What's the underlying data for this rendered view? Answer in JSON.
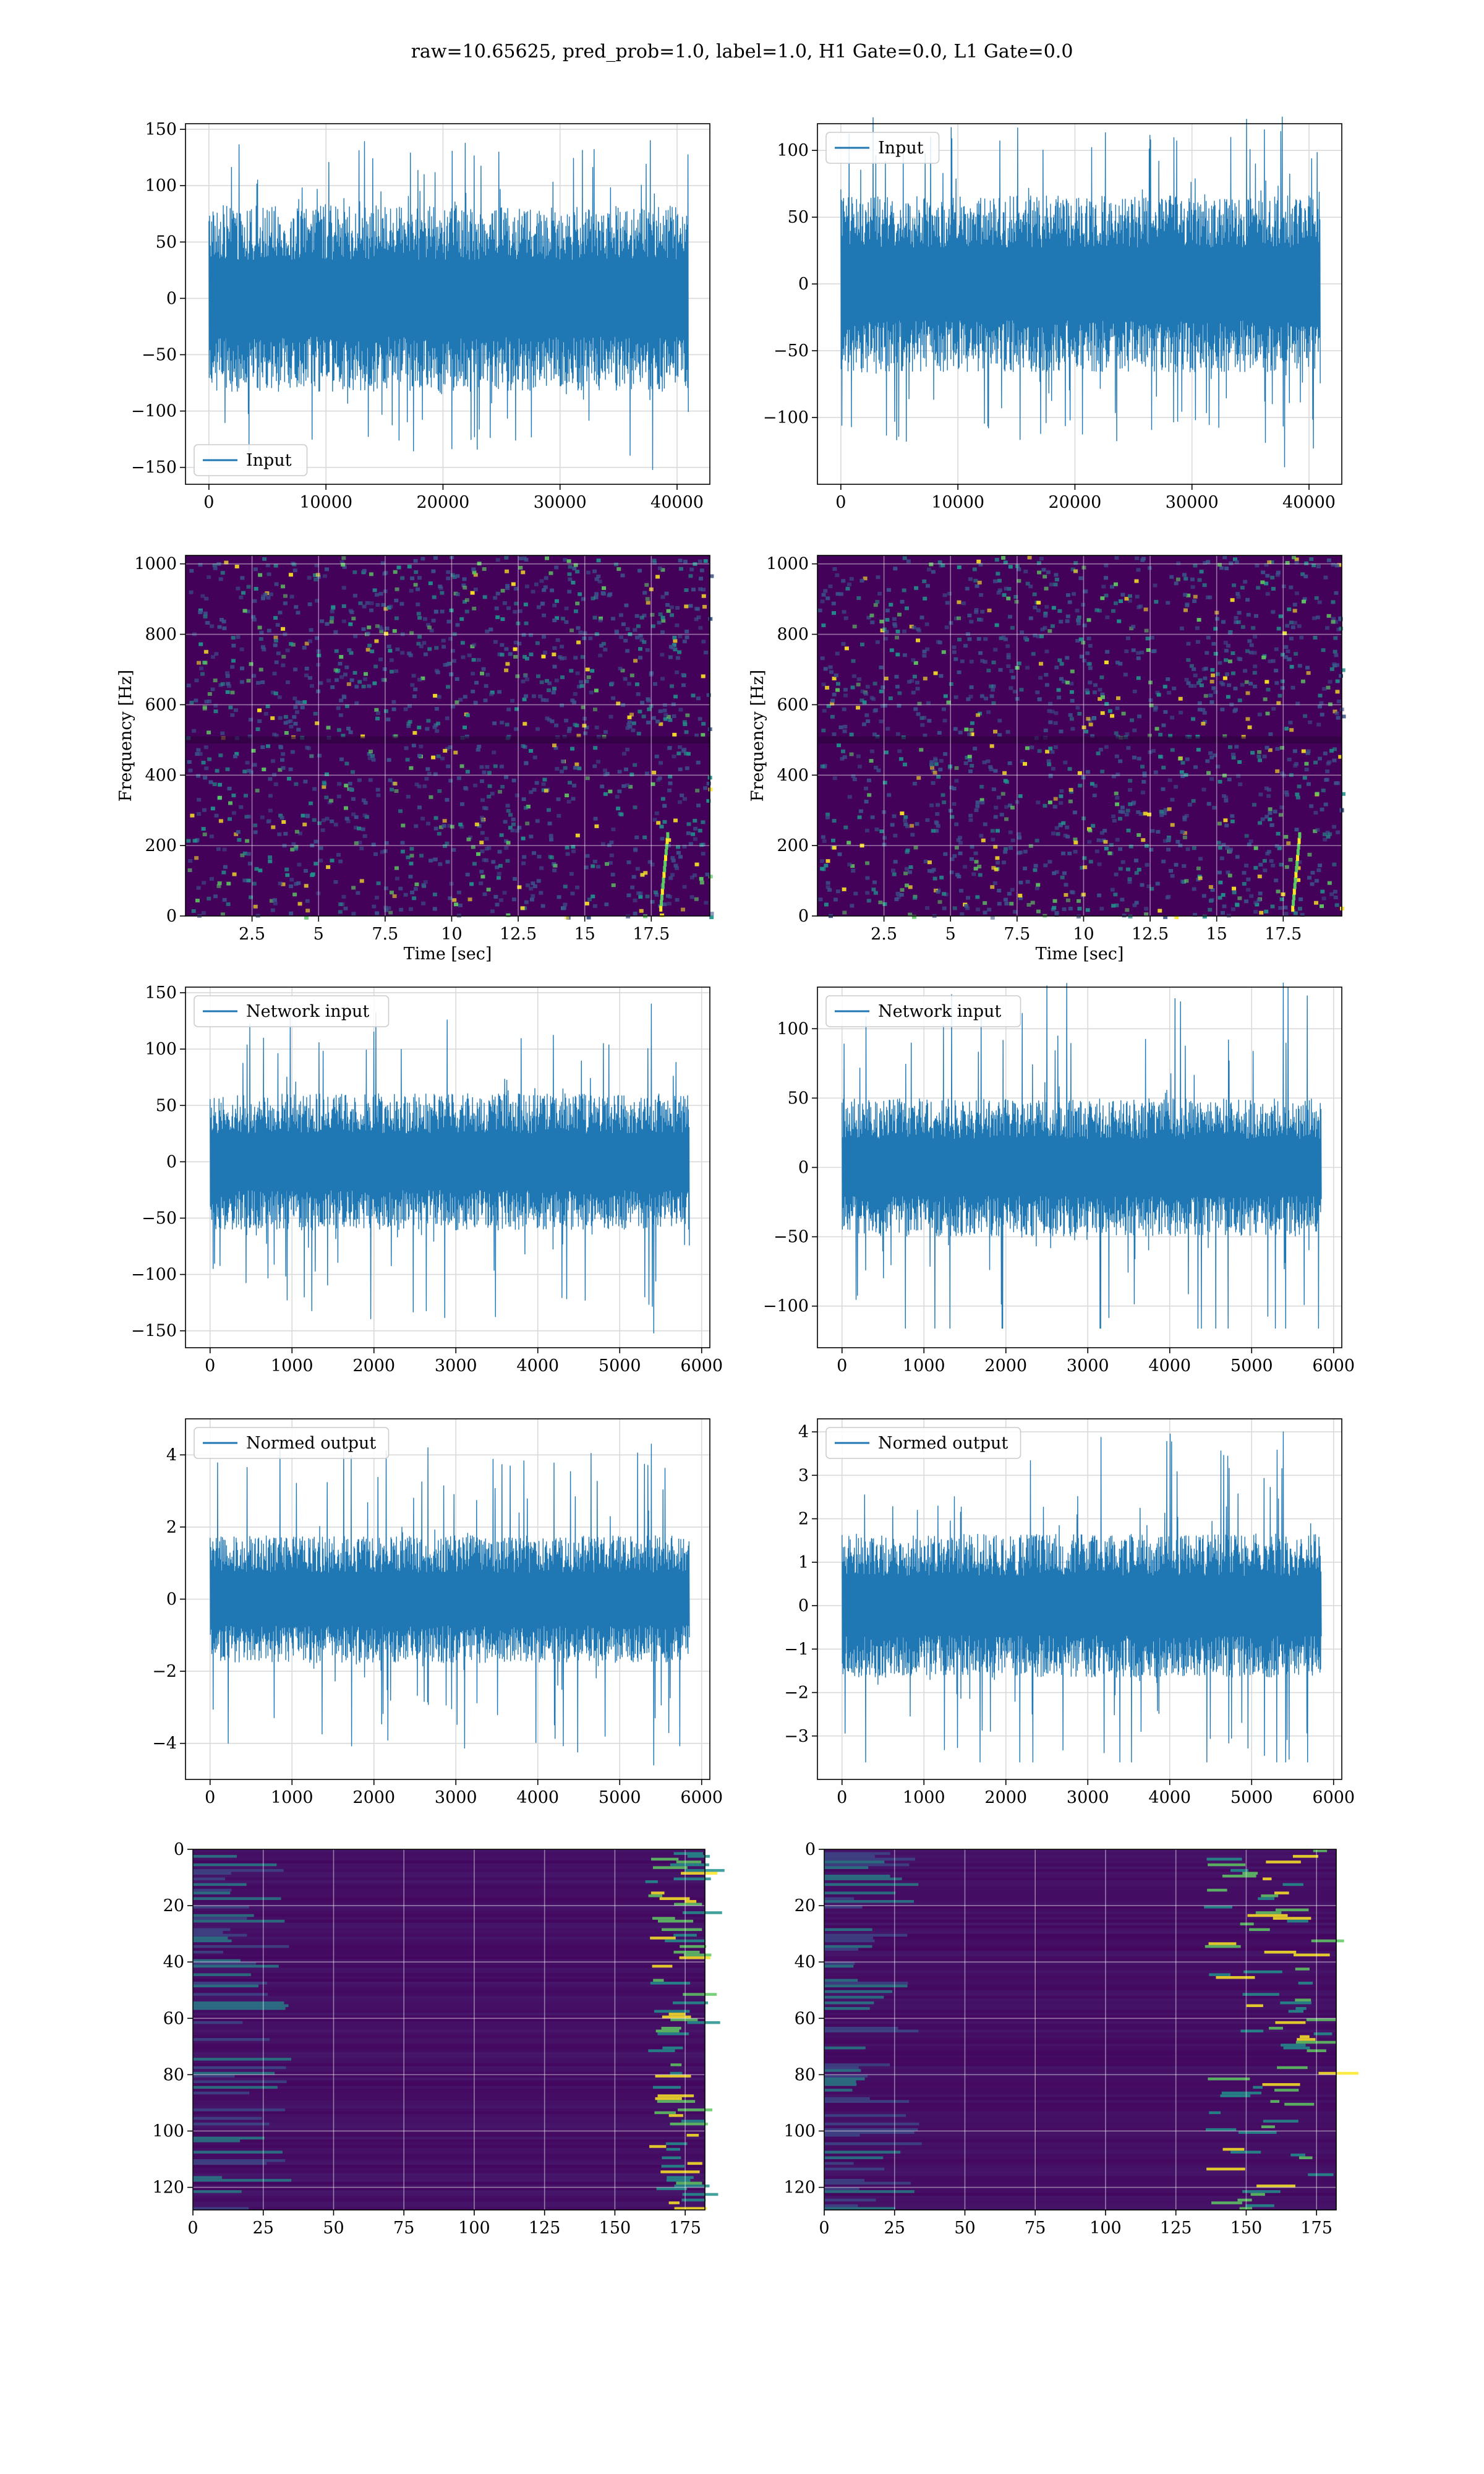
{
  "figure_title": "raw=10.65625, pred_prob=1.0, label=1.0, H1 Gate=0.0, L1 Gate=0.0",
  "colors": {
    "series": "#1f77b4",
    "grid": "#d9d9d9",
    "viridis_bg": "#44015a",
    "viridis_mid": "#3b528b",
    "viridis_teal": "#21918c",
    "viridis_green": "#5ec962",
    "viridis_yellow": "#fde725"
  },
  "chart_data": [
    {
      "id": "H1-input",
      "type": "line",
      "legend": [
        "Input"
      ],
      "legend_position": "lower-left",
      "xlim": [
        -2000,
        42800
      ],
      "ylim": [
        -165,
        155
      ],
      "xticks": [
        0,
        10000,
        20000,
        30000,
        40000
      ],
      "yticks": [
        -150,
        -100,
        -50,
        0,
        50,
        100,
        150
      ],
      "x_range": [
        0,
        40960
      ],
      "noise_envelope": {
        "core": 75,
        "peak": 140,
        "min": -152
      },
      "grid": true
    },
    {
      "id": "L1-input",
      "type": "line",
      "legend": [
        "Input"
      ],
      "legend_position": "upper-left",
      "xlim": [
        -2000,
        42800
      ],
      "ylim": [
        -150,
        120
      ],
      "xticks": [
        0,
        10000,
        20000,
        30000,
        40000
      ],
      "yticks": [
        -100,
        -50,
        0,
        50,
        100
      ],
      "x_range": [
        0,
        40960
      ],
      "noise_envelope": {
        "core": 60,
        "peak": 125,
        "min": -137
      },
      "grid": true
    },
    {
      "id": "H1-spectrogram",
      "type": "heatmap",
      "xlabel": "Time [sec]",
      "ylabel": "Frequency [Hz]",
      "xlim": [
        0,
        19.7
      ],
      "ylim": [
        0,
        1024
      ],
      "xticks": [
        2.5,
        5.0,
        7.5,
        10.0,
        12.5,
        15.0,
        17.5
      ],
      "yticks": [
        0,
        200,
        400,
        600,
        800,
        1000
      ],
      "dark_band_hz": [
        490,
        510
      ],
      "grid": true
    },
    {
      "id": "L1-spectrogram",
      "type": "heatmap",
      "xlabel": "Time [sec]",
      "ylabel": "Frequency [Hz]",
      "xlim": [
        0,
        19.7
      ],
      "ylim": [
        0,
        1024
      ],
      "xticks": [
        2.5,
        5.0,
        7.5,
        10.0,
        12.5,
        15.0,
        17.5
      ],
      "yticks": [
        0,
        200,
        400,
        600,
        800,
        1000
      ],
      "dark_band_hz": [
        490,
        510
      ],
      "grid": true
    },
    {
      "id": "H1-network-input",
      "type": "line",
      "legend": [
        "Network input"
      ],
      "legend_position": "upper-left",
      "xlim": [
        -300,
        6100
      ],
      "ylim": [
        -165,
        155
      ],
      "xticks": [
        0,
        1000,
        2000,
        3000,
        4000,
        5000,
        6000
      ],
      "yticks": [
        -150,
        -100,
        -50,
        0,
        50,
        100,
        150
      ],
      "x_range": [
        0,
        5850
      ],
      "noise_envelope": {
        "core": 55,
        "peak": 140,
        "min": -152
      },
      "grid": true
    },
    {
      "id": "L1-network-input",
      "type": "line",
      "legend": [
        "Network input"
      ],
      "legend_position": "upper-left",
      "xlim": [
        -300,
        6100
      ],
      "ylim": [
        -130,
        130
      ],
      "xticks": [
        0,
        1000,
        2000,
        3000,
        4000,
        5000,
        6000
      ],
      "yticks": [
        -100,
        -50,
        0,
        50,
        100
      ],
      "x_range": [
        0,
        5850
      ],
      "noise_envelope": {
        "core": 45,
        "peak": 133,
        "min": -116
      },
      "grid": true
    },
    {
      "id": "H1-normed-output",
      "type": "line",
      "legend": [
        "Normed output"
      ],
      "legend_position": "upper-left",
      "xlim": [
        -300,
        6100
      ],
      "ylim": [
        -5.0,
        5.0
      ],
      "xticks": [
        0,
        1000,
        2000,
        3000,
        4000,
        5000,
        6000
      ],
      "yticks": [
        -4,
        -2,
        0,
        2,
        4
      ],
      "x_range": [
        0,
        5850
      ],
      "noise_envelope": {
        "core": 1.6,
        "peak": 4.3,
        "min": -4.6
      },
      "grid": true
    },
    {
      "id": "L1-normed-output",
      "type": "line",
      "legend": [
        "Normed output"
      ],
      "legend_position": "upper-left",
      "xlim": [
        -300,
        6100
      ],
      "ylim": [
        -4.0,
        4.3
      ],
      "xticks": [
        0,
        1000,
        2000,
        3000,
        4000,
        5000,
        6000
      ],
      "yticks": [
        -3,
        -2,
        -1,
        0,
        1,
        2,
        3,
        4
      ],
      "x_range": [
        0,
        5850
      ],
      "noise_envelope": {
        "core": 1.5,
        "peak": 4.0,
        "min": -3.6
      },
      "grid": true
    },
    {
      "id": "H1-feature-map",
      "type": "heatmap",
      "xlim": [
        0,
        182
      ],
      "ylim": [
        128,
        0
      ],
      "xticks": [
        0,
        25,
        50,
        75,
        100,
        125,
        150,
        175
      ],
      "yticks": [
        0,
        20,
        40,
        60,
        80,
        100,
        120
      ],
      "hot_columns": [
        160,
        182
      ],
      "grid": true
    },
    {
      "id": "L1-feature-map",
      "type": "heatmap",
      "xlim": [
        0,
        182
      ],
      "ylim": [
        128,
        0
      ],
      "xticks": [
        0,
        25,
        50,
        75,
        100,
        125,
        150,
        175
      ],
      "yticks": [
        0,
        20,
        40,
        60,
        80,
        100,
        120
      ],
      "hot_columns": [
        135,
        182
      ],
      "grid": true
    }
  ]
}
